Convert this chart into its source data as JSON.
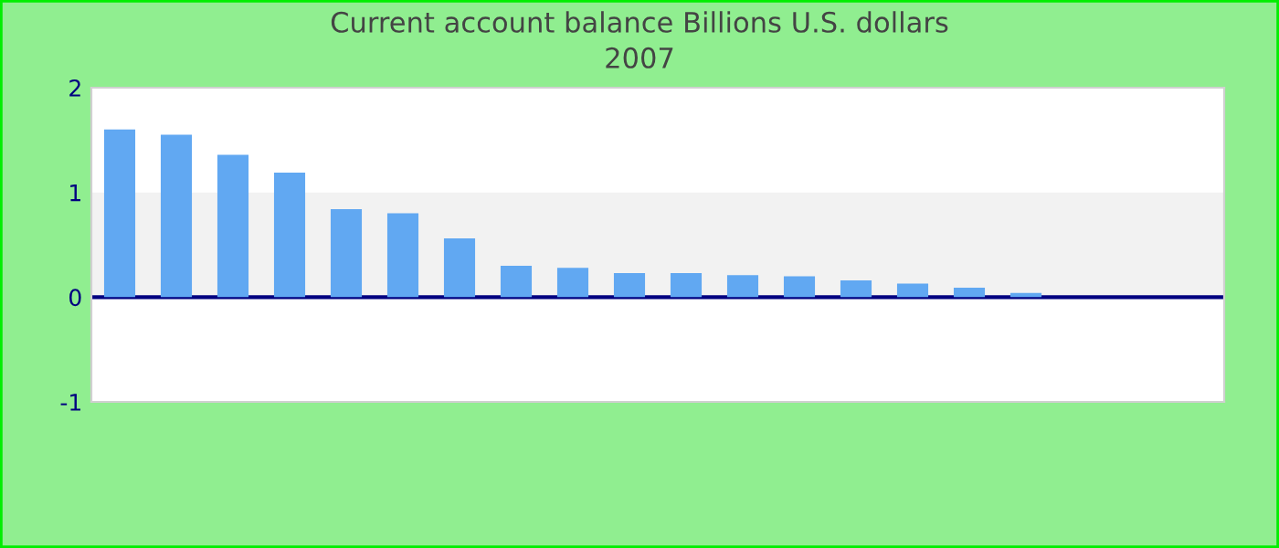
{
  "chart_data": {
    "type": "bar",
    "title": "Current account balance Billions U.S. dollars",
    "subtitle": "2007",
    "categories": [
      null,
      null,
      null,
      null,
      null,
      null,
      null,
      null,
      null,
      null,
      null,
      null,
      null,
      null,
      null,
      null,
      null,
      null,
      null,
      null
    ],
    "values": [
      1.6,
      1.55,
      1.36,
      1.19,
      0.84,
      0.8,
      0.56,
      0.3,
      0.28,
      0.23,
      0.23,
      0.21,
      0.2,
      0.16,
      0.13,
      0.09,
      0.04,
      0,
      0,
      0
    ],
    "color": "#61a8f2",
    "ylim": [
      -1,
      2
    ],
    "yticks": [
      -1,
      0,
      1,
      2
    ],
    "grid": false,
    "bands": [
      {
        "axis": "y",
        "from": 0,
        "to": 1,
        "color": "#f2f2f2"
      }
    ],
    "ref_lines": [
      {
        "axis": "y",
        "value": 0,
        "color": "#000080"
      }
    ]
  }
}
